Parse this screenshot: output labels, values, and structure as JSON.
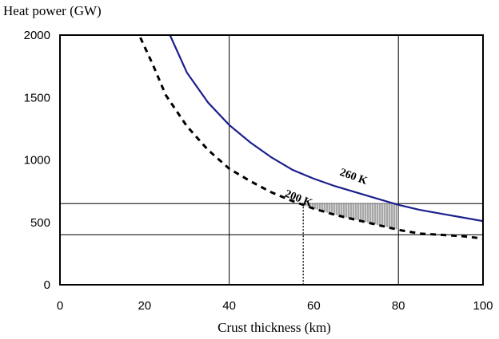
{
  "chart_data": {
    "type": "line",
    "xlabel": "Crust thickness (km)",
    "ylabel": "Heat power (GW)",
    "xlim": [
      0,
      100
    ],
    "ylim": [
      0,
      2000
    ],
    "xticks": [
      0,
      20,
      40,
      60,
      80,
      100
    ],
    "yticks": [
      0,
      500,
      1000,
      1500,
      2000
    ],
    "grid": {
      "vertical_at_x": [
        40,
        80
      ],
      "horizontal_at_y": [
        400,
        650
      ]
    },
    "series": [
      {
        "name": "260 K",
        "style": "solid",
        "color": "#1a1f8c",
        "x": [
          26,
          30,
          35,
          40,
          45,
          50,
          55,
          60,
          65,
          70,
          75,
          80,
          85,
          90,
          95,
          100
        ],
        "y": [
          2000,
          1700,
          1460,
          1280,
          1140,
          1020,
          920,
          850,
          790,
          740,
          690,
          640,
          600,
          570,
          540,
          510
        ]
      },
      {
        "name": "200 K",
        "style": "dashed",
        "color": "#000000",
        "x": [
          19,
          22,
          25,
          30,
          35,
          40,
          45,
          50,
          55,
          60,
          65,
          70,
          75,
          80,
          85,
          90,
          95,
          100
        ],
        "y": [
          1980,
          1760,
          1520,
          1270,
          1080,
          930,
          830,
          740,
          670,
          610,
          560,
          520,
          480,
          440,
          410,
          400,
          390,
          370
        ]
      }
    ],
    "annotations": [
      {
        "text": "260 K",
        "x": 66,
        "y": 880,
        "rotation": 20
      },
      {
        "text": "200 K",
        "x": 53,
        "y": 710,
        "rotation": 22
      },
      {
        "type": "shaded_region",
        "x_range": [
          57.5,
          80
        ],
        "between": [
          "200 K",
          "650 GW line"
        ]
      },
      {
        "type": "dropline",
        "x": 57.5,
        "y_from": 0,
        "y_to": 650,
        "style": "dotted"
      }
    ],
    "colors": {
      "curve_260": "#1a1f8c",
      "curve_200": "#000000",
      "gridline": "#000000",
      "shade": "#a8a8a8"
    }
  }
}
